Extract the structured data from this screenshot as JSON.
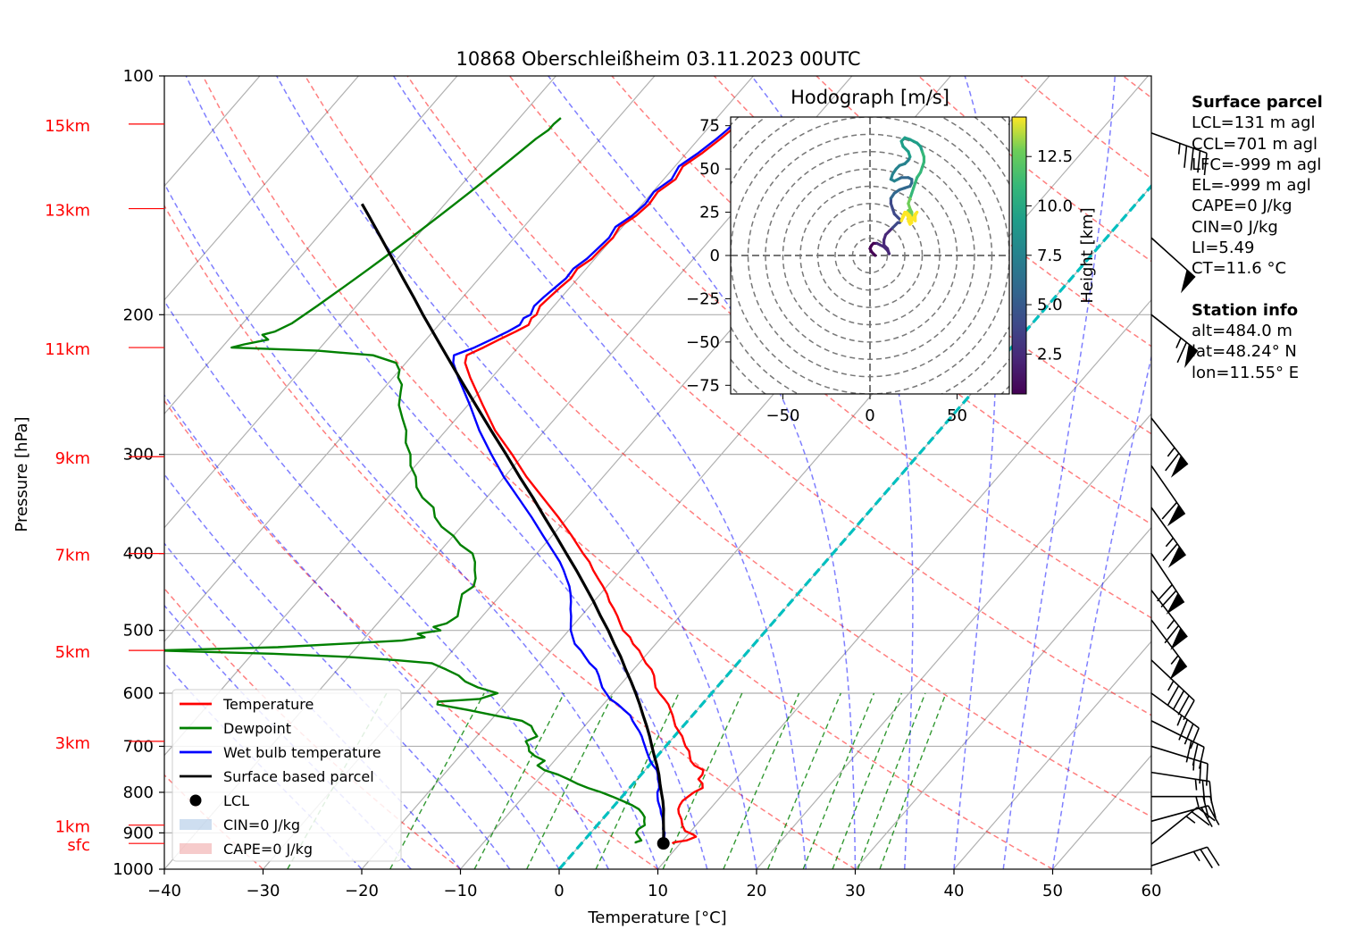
{
  "chart_data": {
    "type": "skew-t",
    "title": "10868 Oberschleißheim 03.11.2023 00UTC",
    "xlabel": "Temperature [°C]",
    "ylabel": "Pressure [hPa]",
    "xlim": [
      -40,
      60
    ],
    "ylim": [
      1000,
      100
    ],
    "y_scale": "log",
    "x_ticks": [
      "−40",
      "−30",
      "−20",
      "−10",
      "0",
      "10",
      "20",
      "30",
      "40",
      "50",
      "60"
    ],
    "x_tick_values": [
      -40,
      -30,
      -20,
      -10,
      0,
      10,
      20,
      30,
      40,
      50,
      60
    ],
    "p_ticks": [
      "100",
      "200",
      "300",
      "400",
      "500",
      "600",
      "700",
      "800",
      "900",
      "1000"
    ],
    "p_tick_values": [
      100,
      200,
      300,
      400,
      500,
      600,
      700,
      800,
      900,
      1000
    ],
    "grid": true,
    "height_labels": [
      {
        "label": "15km",
        "p": 115
      },
      {
        "label": "13km",
        "p": 147
      },
      {
        "label": "11km",
        "p": 220
      },
      {
        "label": "9km",
        "p": 302
      },
      {
        "label": "7km",
        "p": 400
      },
      {
        "label": "5km",
        "p": 530
      },
      {
        "label": "3km",
        "p": 690
      },
      {
        "label": "1km",
        "p": 880
      },
      {
        "label": "sfc",
        "p": 928
      }
    ],
    "series": [
      {
        "name": "Temperature",
        "color": "#ff0000",
        "p": [
          928,
          925,
          920,
          910,
          905,
          895,
          880,
          865,
          850,
          840,
          830,
          820,
          810,
          800,
          790,
          780,
          770,
          760,
          750,
          740,
          730,
          720,
          710,
          700,
          690,
          680,
          670,
          660,
          650,
          640,
          630,
          620,
          610,
          600,
          590,
          580,
          570,
          560,
          550,
          540,
          530,
          520,
          510,
          500,
          490,
          480,
          470,
          460,
          450,
          440,
          430,
          420,
          410,
          400,
          380,
          360,
          340,
          320,
          300,
          280,
          260,
          240,
          230,
          225,
          220,
          215,
          210,
          206,
          202,
          200,
          195,
          190,
          185,
          180,
          175,
          170,
          165,
          160,
          155,
          150,
          145,
          140,
          135,
          130,
          125,
          120,
          117,
          115,
          113
        ],
        "t": [
          9.2,
          9.3,
          10.4,
          11.0,
          10.6,
          9.4,
          8.6,
          8.0,
          7.2,
          6.8,
          6.6,
          6.5,
          6.7,
          6.9,
          7.4,
          7.0,
          6.2,
          6.2,
          5.9,
          4.6,
          3.8,
          3.3,
          2.8,
          2.0,
          1.4,
          0.8,
          0.0,
          -0.8,
          -1.4,
          -2.0,
          -2.7,
          -3.4,
          -4.3,
          -5.3,
          -6.2,
          -6.8,
          -7.4,
          -8.2,
          -9.3,
          -10.2,
          -11.1,
          -12.3,
          -13.2,
          -14.5,
          -15.4,
          -16.3,
          -17.3,
          -18.4,
          -19.3,
          -20.4,
          -21.6,
          -22.8,
          -23.9,
          -25.3,
          -28.0,
          -31.0,
          -34.3,
          -37.8,
          -41.2,
          -45.0,
          -48.5,
          -52.2,
          -54.0,
          -54.5,
          -53.5,
          -52.6,
          -51.6,
          -50.9,
          -51.2,
          -51.0,
          -51.4,
          -51.2,
          -51.0,
          -50.7,
          -50.9,
          -50.3,
          -50.2,
          -50.0,
          -50.3,
          -49.6,
          -49.3,
          -49.5,
          -48.8,
          -49.2,
          -48.4,
          -47.8,
          -47.5,
          -47.4,
          -47.7
        ]
      },
      {
        "name": "Dewpoint",
        "color": "#008000",
        "p": [
          928,
          925,
          920,
          910,
          900,
          890,
          880,
          870,
          860,
          850,
          840,
          830,
          820,
          810,
          800,
          790,
          780,
          770,
          760,
          750,
          740,
          730,
          720,
          710,
          700,
          690,
          680,
          670,
          660,
          650,
          640,
          630,
          620,
          615,
          610,
          600,
          590,
          580,
          570,
          560,
          550,
          545,
          540,
          535,
          530,
          525,
          520,
          515,
          510,
          505,
          500,
          495,
          490,
          480,
          470,
          460,
          450,
          440,
          430,
          420,
          410,
          400,
          390,
          380,
          370,
          360,
          350,
          340,
          330,
          320,
          310,
          300,
          290,
          280,
          270,
          260,
          250,
          245,
          240,
          235,
          230,
          225,
          222,
          220,
          218,
          215,
          212,
          210,
          205,
          200,
          195,
          190,
          185,
          180,
          175,
          170,
          165,
          160,
          155,
          150,
          145,
          140,
          135,
          130,
          125,
          120,
          117,
          115,
          113
        ],
        "t": [
          5.5,
          5.4,
          5.8,
          5.2,
          4.6,
          4.5,
          4.8,
          4.4,
          4.1,
          3.5,
          2.8,
          1.7,
          0.4,
          -1.0,
          -2.5,
          -4.2,
          -5.7,
          -7.0,
          -8.4,
          -10.2,
          -11.3,
          -11.0,
          -12.4,
          -13.4,
          -13.9,
          -14.6,
          -13.9,
          -14.7,
          -15.4,
          -16.8,
          -20.0,
          -23.2,
          -26.8,
          -27.0,
          -23.0,
          -21.7,
          -24.2,
          -26.0,
          -27.2,
          -29.0,
          -31.0,
          -35.0,
          -40.0,
          -48.0,
          -60.0,
          -48.0,
          -42.0,
          -36.0,
          -34.0,
          -35.0,
          -33.0,
          -34.0,
          -33.0,
          -32.5,
          -33.0,
          -33.5,
          -34.0,
          -33.5,
          -34.0,
          -34.8,
          -35.5,
          -36.5,
          -38.5,
          -40.0,
          -42.0,
          -43.5,
          -44.5,
          -46.5,
          -48.0,
          -49.0,
          -50.5,
          -51.5,
          -53.0,
          -54.0,
          -55.5,
          -57.0,
          -58.0,
          -58.5,
          -59.5,
          -60.0,
          -61.0,
          -64.0,
          -70.0,
          -79.0,
          -78.0,
          -76.0,
          -77.0,
          -76.0,
          -75.0,
          -74.5,
          -74.0,
          -73.5,
          -73.0,
          -72.5,
          -72.0,
          -71.5,
          -71.0,
          -70.5,
          -70.0,
          -69.5,
          -69.0,
          -68.5,
          -68.0,
          -67.5,
          -67.0,
          -66.5,
          -66.0,
          -66.0,
          -65.8
        ]
      },
      {
        "name": "Wet bulb temperature",
        "color": "#0000ff",
        "p": [
          928,
          920,
          910,
          900,
          890,
          880,
          870,
          860,
          850,
          840,
          830,
          820,
          810,
          800,
          790,
          780,
          770,
          760,
          750,
          740,
          730,
          720,
          710,
          700,
          690,
          680,
          670,
          660,
          650,
          640,
          630,
          620,
          610,
          600,
          590,
          580,
          570,
          560,
          550,
          540,
          530,
          520,
          510,
          500,
          490,
          480,
          470,
          460,
          450,
          440,
          430,
          420,
          410,
          400,
          380,
          360,
          340,
          320,
          300,
          280,
          260,
          240,
          230,
          225,
          220,
          215,
          210,
          206,
          202,
          200,
          195,
          190,
          185,
          180,
          175,
          170,
          165,
          160,
          155,
          150,
          145,
          140,
          135,
          130,
          125,
          120,
          117,
          115,
          113
        ],
        "t": [
          7.9,
          8.0,
          7.8,
          7.5,
          7.0,
          6.7,
          6.3,
          5.9,
          5.4,
          5.0,
          4.5,
          4.0,
          3.6,
          3.2,
          3.0,
          2.6,
          2.1,
          1.7,
          1.2,
          0.4,
          -0.3,
          -0.9,
          -1.5,
          -2.1,
          -2.7,
          -3.3,
          -4.0,
          -4.8,
          -5.6,
          -6.3,
          -7.4,
          -8.5,
          -9.8,
          -10.7,
          -11.6,
          -12.3,
          -13.0,
          -13.8,
          -15.0,
          -16.0,
          -17.0,
          -18.2,
          -19.0,
          -19.8,
          -20.4,
          -21.0,
          -21.7,
          -22.3,
          -23.0,
          -23.8,
          -24.8,
          -25.8,
          -26.9,
          -28.2,
          -30.9,
          -33.7,
          -36.8,
          -40.1,
          -43.3,
          -46.6,
          -49.8,
          -53.4,
          -55.2,
          -55.8,
          -54.4,
          -53.4,
          -52.4,
          -51.8,
          -52.0,
          -51.6,
          -52.0,
          -51.8,
          -51.5,
          -51.2,
          -51.3,
          -50.8,
          -50.6,
          -50.4,
          -50.7,
          -50.0,
          -49.7,
          -49.9,
          -49.2,
          -49.6,
          -48.8,
          -48.2,
          -47.9,
          -47.8,
          -48.1
        ]
      },
      {
        "name": "Surface based parcel",
        "color": "#000000",
        "p": [
          928,
          900,
          880,
          860,
          840,
          820,
          800,
          780,
          760,
          740,
          720,
          700,
          680,
          660,
          640,
          620,
          600,
          580,
          560,
          540,
          520,
          500,
          480,
          460,
          440,
          420,
          400,
          380,
          360,
          340,
          320,
          300,
          280,
          260,
          240,
          220,
          200,
          190,
          180,
          170,
          160,
          150,
          145
        ],
        "t": [
          8.3,
          7.4,
          6.7,
          6.0,
          5.3,
          4.5,
          3.6,
          2.7,
          1.8,
          0.8,
          -0.3,
          -1.4,
          -2.5,
          -3.7,
          -5.0,
          -6.3,
          -7.7,
          -9.2,
          -10.8,
          -12.4,
          -14.2,
          -16.0,
          -18.0,
          -20.0,
          -22.2,
          -24.5,
          -27.0,
          -29.6,
          -32.4,
          -35.3,
          -38.5,
          -41.8,
          -45.4,
          -49.2,
          -53.3,
          -57.7,
          -62.5,
          -65.0,
          -67.7,
          -70.5,
          -73.5,
          -76.7,
          -78.4
        ]
      }
    ],
    "lcl": {
      "p": 928,
      "t": 8.3
    },
    "legend": {
      "placement": "lower-left",
      "entries": [
        "Temperature",
        "Dewpoint",
        "Wet bulb temperature",
        "Surface based parcel",
        "LCL",
        "CIN=0 J/kg",
        "CAPE=0 J/kg"
      ]
    },
    "hodograph": {
      "title": "Hodograph [m/s]",
      "xlim": [
        -80,
        80
      ],
      "ylim": [
        -80,
        80
      ],
      "x_ticks": [
        "−50",
        "0",
        "50"
      ],
      "x_tick_values": [
        -50,
        0,
        50
      ],
      "y_ticks": [
        "75",
        "50",
        "25",
        "0",
        "−25",
        "−50",
        "−75"
      ],
      "y_tick_values": [
        75,
        50,
        25,
        0,
        -25,
        -50,
        -75
      ],
      "colorbar_label": "Height [km]",
      "colorbar_ticks": [
        "2.5",
        "5.0",
        "7.5",
        "10.0",
        "12.5"
      ],
      "colorbar_tick_values": [
        2.5,
        5.0,
        7.5,
        10.0,
        12.5
      ],
      "colorbar_range": [
        0.48,
        14.5
      ],
      "u": [
        3,
        1,
        0,
        1,
        2,
        4,
        6,
        8,
        10,
        11,
        10,
        8,
        8,
        9,
        11,
        13,
        15,
        16,
        17,
        18,
        16,
        14,
        13,
        12,
        12,
        14,
        17,
        20,
        23,
        24,
        24,
        22,
        18,
        16,
        14,
        12,
        13,
        15,
        17,
        20,
        22,
        23,
        22,
        19,
        18,
        20,
        23,
        25,
        27,
        29,
        30,
        31,
        31,
        30,
        29,
        27,
        26,
        25,
        24,
        23,
        22,
        23,
        24,
        24,
        23,
        22,
        22,
        23,
        25,
        26,
        26,
        27,
        26,
        25,
        24,
        23,
        21,
        20,
        19,
        18,
        19,
        20,
        21,
        22,
        23,
        22,
        24,
        23,
        22
      ],
      "v": [
        0,
        2,
        4,
        6,
        7,
        7,
        6,
        5,
        3,
        1,
        4,
        6,
        9,
        12,
        14,
        16,
        18,
        19,
        19,
        20,
        22,
        24,
        27,
        30,
        33,
        36,
        38,
        39,
        40,
        42,
        44,
        45,
        45,
        44,
        43,
        44,
        47,
        50,
        52,
        53,
        55,
        57,
        60,
        63,
        66,
        68,
        67,
        66,
        65,
        63,
        60,
        57,
        54,
        51,
        48,
        45,
        42,
        39,
        36,
        33,
        30,
        27,
        25,
        23,
        22,
        24,
        26,
        24,
        22,
        20,
        23,
        25,
        24,
        22,
        20,
        23,
        25,
        24,
        22,
        20,
        23,
        25,
        24,
        22,
        20,
        21,
        19,
        18,
        20
      ],
      "h": [
        0.48,
        0.65,
        0.8,
        0.95,
        1.1,
        1.25,
        1.4,
        1.55,
        1.7,
        1.85,
        2.0,
        2.2,
        2.4,
        2.6,
        2.8,
        3.0,
        3.2,
        3.4,
        3.6,
        3.8,
        4.0,
        4.2,
        4.4,
        4.6,
        4.8,
        5.0,
        5.2,
        5.4,
        5.6,
        5.8,
        6.0,
        6.2,
        6.4,
        6.6,
        6.8,
        7.0,
        7.2,
        7.4,
        7.6,
        7.8,
        8.0,
        8.2,
        8.4,
        8.6,
        8.8,
        9.0,
        9.2,
        9.4,
        9.6,
        9.8,
        10.0,
        10.2,
        10.4,
        10.6,
        10.8,
        11.0,
        11.2,
        11.4,
        11.6,
        11.8,
        12.0,
        12.2,
        12.4,
        12.6,
        12.8,
        13.0,
        13.2,
        13.4,
        13.6,
        13.8,
        14.0,
        14.1,
        14.2,
        14.3,
        14.4,
        14.5,
        14.5,
        14.5,
        14.5,
        14.5,
        14.5,
        14.5,
        14.5,
        14.5,
        14.5,
        14.5,
        14.5,
        14.5,
        14.5
      ]
    },
    "wind_barbs": [
      {
        "p": 990,
        "u": -12,
        "v": -4
      },
      {
        "p": 930,
        "u": -10,
        "v": -8
      },
      {
        "p": 870,
        "u": -11,
        "v": -3
      },
      {
        "p": 810,
        "u": -12,
        "v": 0
      },
      {
        "p": 755,
        "u": -13,
        "v": 2
      },
      {
        "p": 700,
        "u": -13,
        "v": 4
      },
      {
        "p": 650,
        "u": -14,
        "v": 7
      },
      {
        "p": 600,
        "u": -15,
        "v": 11
      },
      {
        "p": 545,
        "u": -17,
        "v": 16
      },
      {
        "p": 485,
        "u": -18,
        "v": 24
      },
      {
        "p": 445,
        "u": -20,
        "v": 26
      },
      {
        "p": 400,
        "u": -20,
        "v": 30
      },
      {
        "p": 350,
        "u": -20,
        "v": 28
      },
      {
        "p": 310,
        "u": -18,
        "v": 26
      },
      {
        "p": 270,
        "u": -22,
        "v": 28
      },
      {
        "p": 200,
        "u": -28,
        "v": 22
      },
      {
        "p": 160,
        "u": -20,
        "v": 18
      },
      {
        "p": 118,
        "u": -22,
        "v": 8
      }
    ]
  },
  "panel": {
    "surface_header": "Surface parcel",
    "lcl": "LCL=131 m agl",
    "ccl": "CCL=701 m agl",
    "lfc": "LFC=-999 m agl",
    "el": "EL=-999 m agl",
    "cape": "CAPE=0 J/kg",
    "cin": "CIN=0 J/kg",
    "li": "LI=5.49",
    "ct": "CT=11.6 °C",
    "station_header": "Station info",
    "alt": "alt=484.0 m",
    "lat": "lat=48.24° N",
    "lon": "lon=11.55° E"
  }
}
